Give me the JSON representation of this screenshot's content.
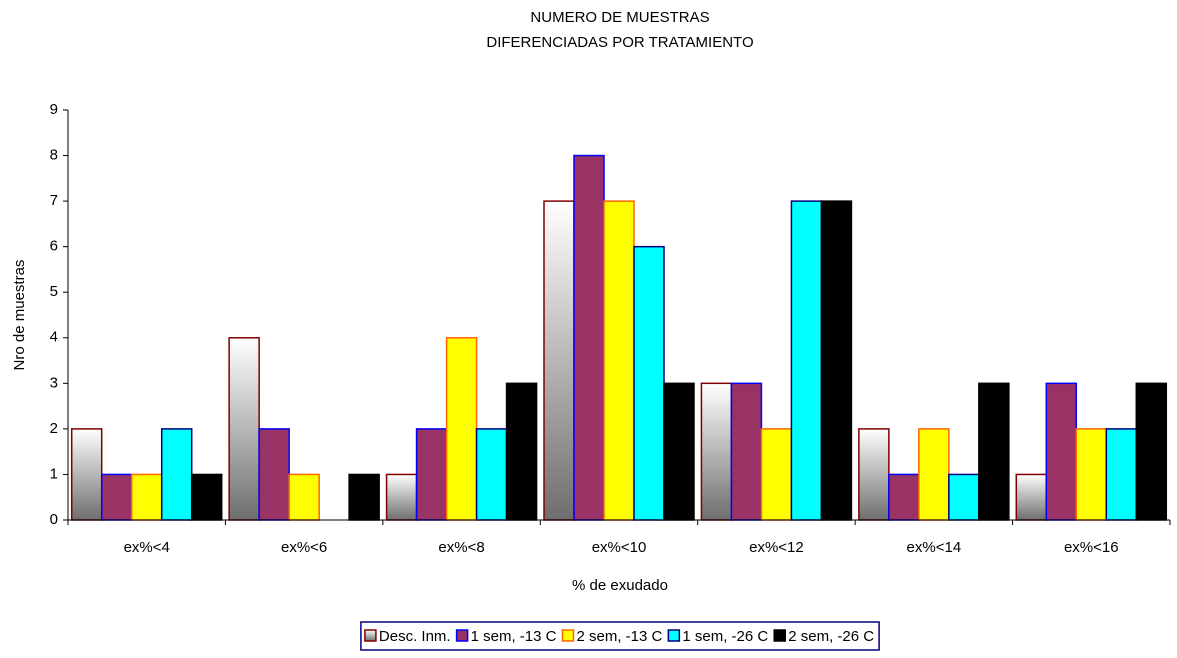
{
  "chart_data": {
    "type": "bar",
    "title": [
      "NUMERO DE MUESTRAS",
      "DIFERENCIADAS POR TRATAMIENTO"
    ],
    "x_label": "% de exudado",
    "y_label": "Nro de muestras",
    "categories": [
      "ex%<4",
      "ex%<6",
      "ex%<8",
      "ex%<10",
      "ex%<12",
      "ex%<14",
      "ex%<16"
    ],
    "series": [
      {
        "name": "Desc. Inm.",
        "color": "#ffffff",
        "gradient": [
          "#ffffff",
          "#6e6e6e"
        ],
        "border": "#800000",
        "values": [
          2,
          4,
          1,
          7,
          3,
          2,
          1
        ]
      },
      {
        "name": "1 sem, -13 C",
        "color": "#993366",
        "border": "#0000ff",
        "values": [
          1,
          2,
          2,
          8,
          3,
          1,
          3
        ]
      },
      {
        "name": "2 sem, -13 C",
        "color": "#ffff00",
        "border": "#ff6600",
        "values": [
          1,
          1,
          4,
          7,
          2,
          2,
          2
        ]
      },
      {
        "name": "1 sem, -26 C",
        "color": "#00ffff",
        "border": "#000080",
        "values": [
          2,
          0,
          2,
          6,
          7,
          1,
          2
        ]
      },
      {
        "name": "2 sem, -26 C",
        "color": "#000000",
        "border": "#000000",
        "values": [
          1,
          1,
          3,
          3,
          7,
          3,
          3
        ]
      }
    ],
    "ylim": [
      0,
      9
    ],
    "yticks": [
      0,
      1,
      2,
      3,
      4,
      5,
      6,
      7,
      8,
      9
    ],
    "grid": false,
    "legend": "bottom"
  }
}
